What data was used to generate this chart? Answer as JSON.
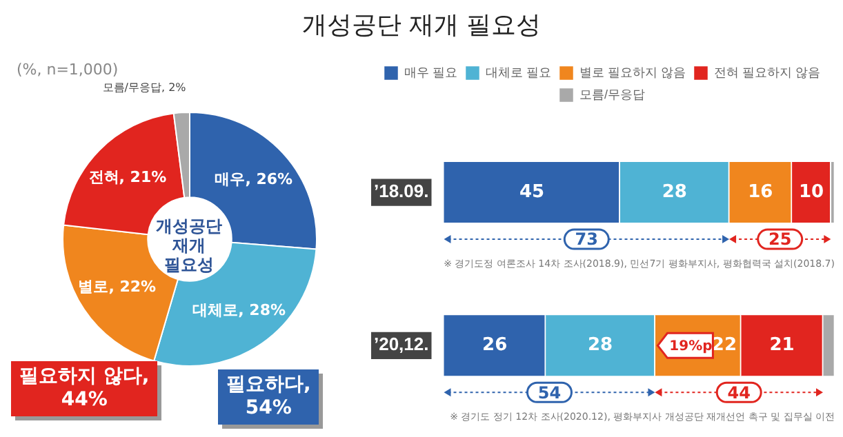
{
  "chart_data": [
    {
      "type": "donut",
      "title": "개성공단 재개 필요성",
      "categories": [
        "매우",
        "대체로",
        "별로",
        "전혀",
        "모름/무응답"
      ],
      "values": [
        26,
        28,
        22,
        21,
        2
      ],
      "value_labels": [
        "26%",
        "28%",
        "22%",
        "21%",
        "2%"
      ],
      "colors": [
        "#2f63ad",
        "#4fb3d4",
        "#f0861e",
        "#e1251f",
        "#a9a9a9"
      ],
      "legend": false,
      "annotations": [
        "(%, n=1,000)",
        "개성공단 재개 필요성",
        "필요하다, 54%",
        "필요하지 않다, 44%"
      ]
    },
    {
      "type": "bar",
      "orientation": "horizontal",
      "stacked": true,
      "categories": [
        "’18.09.",
        "’20,12."
      ],
      "series": [
        {
          "name": "매우 필요",
          "color": "#2f63ad",
          "values": [
            45,
            26
          ],
          "value_labels": [
            "45",
            "26"
          ]
        },
        {
          "name": "대체로 필요",
          "color": "#4fb3d4",
          "values": [
            28,
            28
          ],
          "value_labels": [
            "28",
            "28"
          ]
        },
        {
          "name": "별로 필요하지 않음",
          "color": "#f0861e",
          "values": [
            16,
            22
          ],
          "value_labels": [
            "16",
            "22"
          ]
        },
        {
          "name": "전혀 필요하지 않음",
          "color": "#e1251f",
          "values": [
            10,
            21
          ],
          "value_labels": [
            "10",
            "21"
          ]
        },
        {
          "name": "모름/무응답",
          "color": "#a9a9a9",
          "values": [
            1,
            3
          ],
          "value_labels": [
            null,
            null
          ]
        }
      ],
      "legend": "top",
      "annotations": [
        "73",
        "25",
        "54",
        "44",
        "19%p",
        "※ 경기도정 여론조사 14차 조사(2018.9), 민선7기 평화부지사, 평화협력국 설치(2018.7)",
        "※ 경기도 정기 12차 조사(2020.12), 평화부지사 개성공단 재개선언 촉구 및 집무실 이전"
      ]
    }
  ]
}
